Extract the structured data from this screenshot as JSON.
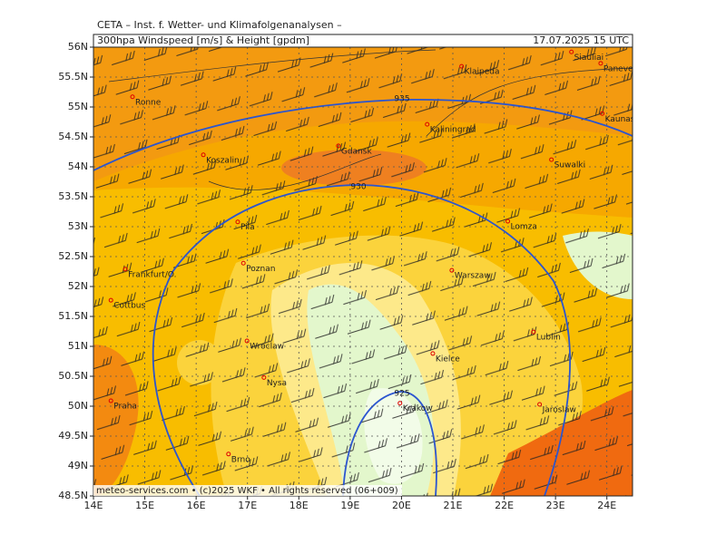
{
  "header": {
    "institute": "CETA – Inst. f. Wetter- und Klimafolgenanalysen –",
    "product": "300hpa Windspeed [m/s] & Height [gpdm]",
    "valid": "17.07.2025 15 UTC"
  },
  "footer": "meteo-services.com • (c)2025 WKF • All rights reserved (06+009)",
  "map": {
    "lonlim": [
      14,
      24.5
    ],
    "latlim": [
      48.5,
      56
    ],
    "lonticks": [
      {
        "value": 14,
        "label": "14E"
      },
      {
        "value": 15,
        "label": "15E"
      },
      {
        "value": 16,
        "label": "16E"
      },
      {
        "value": 17,
        "label": "17E"
      },
      {
        "value": 18,
        "label": "18E"
      },
      {
        "value": 19,
        "label": "19E"
      },
      {
        "value": 20,
        "label": "20E"
      },
      {
        "value": 21,
        "label": "21E"
      },
      {
        "value": 22,
        "label": "22E"
      },
      {
        "value": 23,
        "label": "23E"
      },
      {
        "value": 24,
        "label": "24E"
      }
    ],
    "latticks": [
      {
        "value": 56,
        "label": "56N"
      },
      {
        "value": 55.5,
        "label": "55.5N"
      },
      {
        "value": 55,
        "label": "55N"
      },
      {
        "value": 54.5,
        "label": "54.5N"
      },
      {
        "value": 54,
        "label": "54N"
      },
      {
        "value": 53.5,
        "label": "53.5N"
      },
      {
        "value": 53,
        "label": "53N"
      },
      {
        "value": 52.5,
        "label": "52.5N"
      },
      {
        "value": 52,
        "label": "52N"
      },
      {
        "value": 51.5,
        "label": "51.5N"
      },
      {
        "value": 51,
        "label": "51N"
      },
      {
        "value": 50.5,
        "label": "50.5N"
      },
      {
        "value": 50,
        "label": "50N"
      },
      {
        "value": 49.5,
        "label": "49.5N"
      },
      {
        "value": 49,
        "label": "49N"
      },
      {
        "value": 48.5,
        "label": "48.5N"
      }
    ],
    "contour_labels": [
      935,
      930,
      925
    ],
    "cities": [
      {
        "name": "Ronne",
        "lon": 14.76,
        "lat": 55.17
      },
      {
        "name": "Klaipeda",
        "lon": 21.17,
        "lat": 55.68
      },
      {
        "name": "Siauliai",
        "lon": 23.31,
        "lat": 55.92
      },
      {
        "name": "Panevezys",
        "lon": 23.88,
        "lat": 55.73
      },
      {
        "name": "Kaunas",
        "lon": 23.91,
        "lat": 54.89
      },
      {
        "name": "Kaliningrad",
        "lon": 20.5,
        "lat": 54.71
      },
      {
        "name": "Gdansk",
        "lon": 18.77,
        "lat": 54.35
      },
      {
        "name": "Koszalin",
        "lon": 16.14,
        "lat": 54.2
      },
      {
        "name": "Suwalki",
        "lon": 22.92,
        "lat": 54.12
      },
      {
        "name": "Pila",
        "lon": 16.81,
        "lat": 53.08
      },
      {
        "name": "Lomza",
        "lon": 22.07,
        "lat": 53.09
      },
      {
        "name": "Poznan",
        "lon": 16.92,
        "lat": 52.39
      },
      {
        "name": "Frankfurt/O.",
        "lon": 14.62,
        "lat": 52.29
      },
      {
        "name": "Warszaw",
        "lon": 20.98,
        "lat": 52.27
      },
      {
        "name": "Cottbus",
        "lon": 14.34,
        "lat": 51.77
      },
      {
        "name": "Lublin",
        "lon": 22.57,
        "lat": 51.24
      },
      {
        "name": "Wroclaw",
        "lon": 16.99,
        "lat": 51.09
      },
      {
        "name": "Kielce",
        "lon": 20.61,
        "lat": 50.88
      },
      {
        "name": "Nysa",
        "lon": 17.32,
        "lat": 50.48
      },
      {
        "name": "Praha",
        "lon": 14.34,
        "lat": 50.09
      },
      {
        "name": "Krakow",
        "lon": 19.97,
        "lat": 50.05
      },
      {
        "name": "Jaroslaw",
        "lon": 22.69,
        "lat": 50.03
      },
      {
        "name": "Brno",
        "lon": 16.63,
        "lat": 49.2
      }
    ]
  }
}
